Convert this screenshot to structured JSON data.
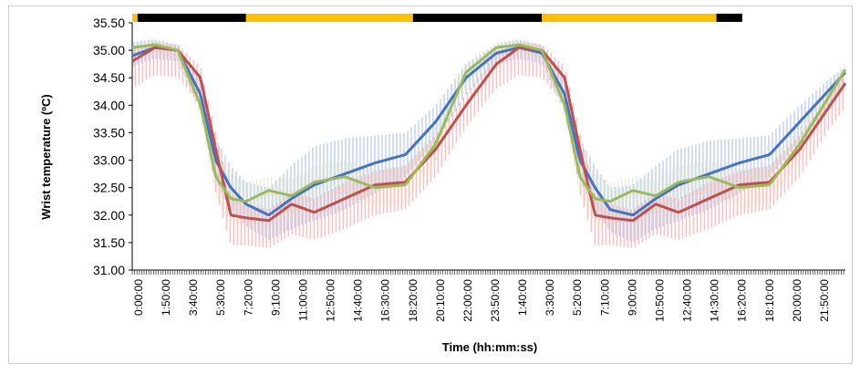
{
  "chart_data": {
    "type": "line",
    "title": "",
    "xlabel": "Time (hh:mm:ss)",
    "ylabel": "Wrist temperature (ºC)",
    "ylim": [
      31.0,
      35.5
    ],
    "yticks": [
      "35.50",
      "35.00",
      "34.50",
      "34.00",
      "33.50",
      "33.00",
      "32.50",
      "32.00",
      "31.50",
      "31.00"
    ],
    "x_tick_labels": [
      "0:00:00",
      "1:50:00",
      "3:40:00",
      "5:30:00",
      "7:20:00",
      "9:10:00",
      "11:00:00",
      "12:50:00",
      "14:40:00",
      "16:30:00",
      "18:20:00",
      "20:10:00",
      "22:00:00",
      "23:50:00",
      "1:40:00",
      "3:30:00",
      "5:20:00",
      "7:10:00",
      "9:00:00",
      "10:50:00",
      "12:40:00",
      "14:30:00",
      "16:20:00",
      "18:10:00",
      "20:00:00",
      "21:50:00"
    ],
    "x_hours": [
      0,
      1.5,
      3,
      4.5,
      5.5,
      6.5,
      7.5,
      9,
      10.5,
      12,
      14,
      16,
      18,
      20,
      22,
      24,
      25.5,
      27,
      28.5,
      29.5,
      30.5,
      31.5,
      33,
      34.5,
      36,
      38,
      40,
      42,
      44,
      46,
      47
    ],
    "light_dark_bar": {
      "colors": {
        "dark": "#000000",
        "light": "#FFC000"
      },
      "segments": [
        {
          "state": "light",
          "start": 0,
          "end": 0.35
        },
        {
          "state": "dark",
          "start": 0.35,
          "end": 7.5
        },
        {
          "state": "light",
          "start": 7.5,
          "end": 18.5
        },
        {
          "state": "dark",
          "start": 18.5,
          "end": 27
        },
        {
          "state": "light",
          "start": 27,
          "end": 38.5
        },
        {
          "state": "dark",
          "start": 38.5,
          "end": 40.2
        }
      ]
    },
    "series": [
      {
        "color": "#4472C4",
        "band_color": "#B4C7E7",
        "values": [
          34.9,
          35.05,
          35.0,
          34.2,
          33.0,
          32.5,
          32.2,
          32.0,
          32.3,
          32.55,
          32.75,
          32.95,
          33.1,
          33.7,
          34.5,
          34.95,
          35.05,
          34.95,
          34.2,
          33.0,
          32.5,
          32.1,
          32.0,
          32.3,
          32.55,
          32.75,
          32.95,
          33.1,
          33.7,
          34.3,
          34.6
        ],
        "upper": [
          35.15,
          35.2,
          35.1,
          34.45,
          33.4,
          32.9,
          32.6,
          32.5,
          32.9,
          33.25,
          33.4,
          33.45,
          33.5,
          34.0,
          34.75,
          35.1,
          35.2,
          35.1,
          34.45,
          33.4,
          32.9,
          32.5,
          32.55,
          32.9,
          33.2,
          33.35,
          33.4,
          33.45,
          34.0,
          34.5,
          34.7
        ],
        "lower": [
          34.7,
          34.85,
          34.8,
          33.9,
          32.6,
          32.1,
          31.8,
          31.55,
          31.75,
          31.9,
          32.1,
          32.4,
          32.7,
          33.35,
          34.2,
          34.75,
          34.85,
          34.75,
          33.9,
          32.6,
          32.1,
          31.7,
          31.5,
          31.75,
          31.9,
          32.1,
          32.4,
          32.7,
          33.35,
          34.0,
          34.4
        ]
      },
      {
        "color": "#C0504D",
        "band_color": "#F2B9B8",
        "values": [
          34.8,
          35.05,
          35.0,
          34.5,
          33.2,
          32.0,
          31.95,
          31.9,
          32.2,
          32.05,
          32.3,
          32.55,
          32.6,
          33.2,
          34.0,
          34.75,
          35.05,
          35.0,
          34.5,
          33.2,
          32.0,
          31.95,
          31.9,
          32.2,
          32.05,
          32.3,
          32.55,
          32.6,
          33.2,
          34.0,
          34.4
        ],
        "upper": [
          35.05,
          35.15,
          35.1,
          34.7,
          33.5,
          32.4,
          32.2,
          32.1,
          32.4,
          32.3,
          32.6,
          32.8,
          32.9,
          33.45,
          34.2,
          34.95,
          35.15,
          35.1,
          34.7,
          33.5,
          32.4,
          32.2,
          32.1,
          32.4,
          32.3,
          32.6,
          32.8,
          32.9,
          33.45,
          34.2,
          34.6
        ],
        "lower": [
          34.3,
          34.55,
          34.5,
          34.0,
          32.4,
          31.45,
          31.45,
          31.4,
          31.65,
          31.55,
          31.75,
          32.0,
          32.1,
          32.7,
          33.6,
          34.3,
          34.55,
          34.5,
          34.0,
          32.4,
          31.45,
          31.45,
          31.4,
          31.65,
          31.55,
          31.75,
          32.0,
          32.1,
          32.7,
          33.6,
          33.95
        ]
      },
      {
        "color": "#9BBB59",
        "band_color": "#E6EEC7",
        "values": [
          35.05,
          35.1,
          35.0,
          34.0,
          32.7,
          32.3,
          32.25,
          32.45,
          32.35,
          32.6,
          32.7,
          32.5,
          32.55,
          33.3,
          34.6,
          35.05,
          35.1,
          35.0,
          34.0,
          32.7,
          32.3,
          32.25,
          32.45,
          32.35,
          32.6,
          32.7,
          32.5,
          32.55,
          33.3,
          34.2,
          34.65
        ],
        "upper": [
          35.15,
          35.2,
          35.1,
          34.25,
          33.1,
          32.75,
          32.6,
          32.7,
          32.65,
          32.9,
          33.0,
          32.85,
          32.9,
          33.6,
          34.8,
          35.15,
          35.2,
          35.1,
          34.25,
          33.1,
          32.75,
          32.6,
          32.7,
          32.65,
          32.9,
          33.0,
          32.85,
          32.9,
          33.6,
          34.45,
          34.8
        ],
        "lower": [
          34.9,
          34.95,
          34.85,
          33.75,
          32.35,
          31.85,
          31.75,
          32.1,
          32.0,
          32.3,
          32.4,
          32.15,
          32.2,
          33.0,
          34.35,
          34.9,
          34.95,
          34.85,
          33.75,
          32.35,
          31.85,
          31.75,
          32.1,
          32.0,
          32.3,
          32.4,
          32.15,
          32.2,
          33.0,
          33.95,
          34.45
        ]
      }
    ]
  }
}
